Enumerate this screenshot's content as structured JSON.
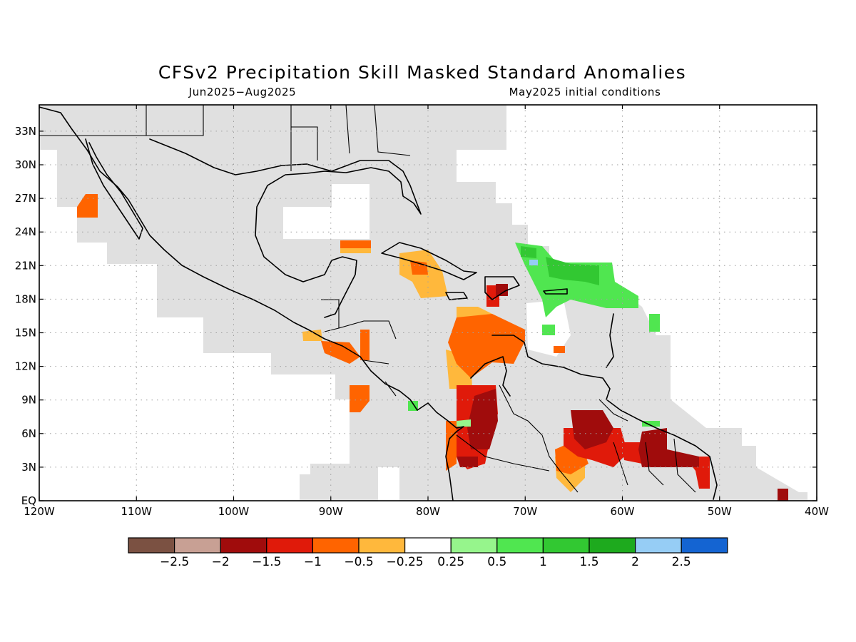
{
  "title": "CFSv2 Precipitation Skill Masked Standard Anomalies",
  "season": "Jun2025−Aug2025",
  "init": "May2025 initial conditions",
  "map": {
    "lon_range": [
      -120,
      -40
    ],
    "lat_range": [
      0,
      35
    ],
    "lat_ticks": [
      {
        "value": 33,
        "label": "33N"
      },
      {
        "value": 30,
        "label": "30N"
      },
      {
        "value": 27,
        "label": "27N"
      },
      {
        "value": 24,
        "label": "24N"
      },
      {
        "value": 21,
        "label": "21N"
      },
      {
        "value": 18,
        "label": "18N"
      },
      {
        "value": 15,
        "label": "15N"
      },
      {
        "value": 12,
        "label": "12N"
      },
      {
        "value": 9,
        "label": "9N"
      },
      {
        "value": 6,
        "label": "6N"
      },
      {
        "value": 3,
        "label": "3N"
      },
      {
        "value": 0,
        "label": "EQ"
      }
    ],
    "lon_ticks": [
      {
        "value": -120,
        "label": "120W"
      },
      {
        "value": -110,
        "label": "110W"
      },
      {
        "value": -100,
        "label": "100W"
      },
      {
        "value": -90,
        "label": "90W"
      },
      {
        "value": -80,
        "label": "80W"
      },
      {
        "value": -70,
        "label": "70W"
      },
      {
        "value": -60,
        "label": "60W"
      },
      {
        "value": -50,
        "label": "50W"
      },
      {
        "value": -40,
        "label": "40W"
      }
    ],
    "grid": true,
    "mask_color": "#e0e0e0"
  },
  "colorbar": {
    "colors": [
      "#7b5142",
      "#c8a094",
      "#a00c0c",
      "#e01a0a",
      "#ff6400",
      "#ffb83c",
      "#ffffff",
      "#96f58c",
      "#50e650",
      "#32c832",
      "#1eaa1e",
      "#96cdf5",
      "#1464d2"
    ],
    "labels": [
      "−2.5",
      "−2",
      "−1.5",
      "−1",
      "−0.5",
      "−0.25",
      "0.25",
      "0.5",
      "1",
      "1.5",
      "2",
      "2.5"
    ]
  }
}
